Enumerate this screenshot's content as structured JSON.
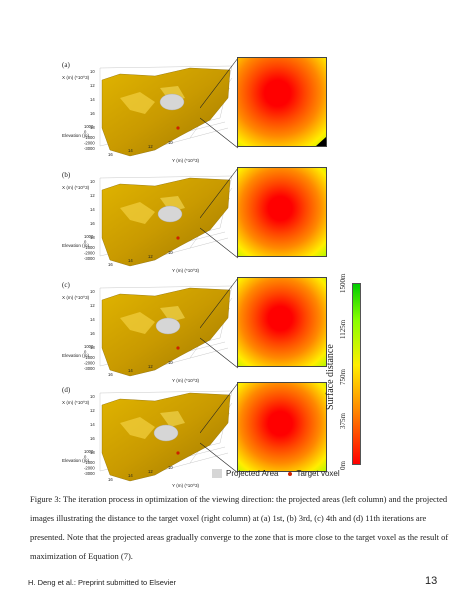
{
  "panels": [
    {
      "label": "(a)",
      "x_axis_label": "X (m) (*10^3)",
      "y_axis_label": "Y (m) (*10^3)",
      "z_axis_label": "Elevation (m)",
      "x_ticks": [
        "10",
        "12",
        "14",
        "16",
        "18"
      ],
      "y_ticks": [
        "16",
        "14",
        "12",
        "10"
      ],
      "z_ticks": [
        "1000",
        "0",
        "-1000",
        "-2000",
        "-3000"
      ]
    },
    {
      "label": "(b)",
      "x_axis_label": "X (m) (*10^3)",
      "y_axis_label": "Y (m) (*10^3)",
      "z_axis_label": "Elevation (m)",
      "x_ticks": [
        "10",
        "12",
        "14",
        "16",
        "18"
      ],
      "y_ticks": [
        "16",
        "14",
        "12",
        "10"
      ],
      "z_ticks": [
        "1000",
        "0",
        "-1000",
        "-2000",
        "-3000"
      ]
    },
    {
      "label": "(c)",
      "x_axis_label": "X (m) (*10^3)",
      "y_axis_label": "Y (m) (*10^3)",
      "z_axis_label": "Elevation (m)",
      "x_ticks": [
        "10",
        "12",
        "14",
        "16",
        "18"
      ],
      "y_ticks": [
        "16",
        "14",
        "12",
        "10"
      ],
      "z_ticks": [
        "1000",
        "0",
        "-1000",
        "-2000",
        "-3000"
      ]
    },
    {
      "label": "(d)",
      "x_axis_label": "X (m) (*10^3)",
      "y_axis_label": "Y (m) (*10^3)",
      "z_axis_label": "Elevation (m)",
      "x_ticks": [
        "10",
        "12",
        "14",
        "16",
        "18"
      ],
      "y_ticks": [
        "16",
        "14",
        "12",
        "10"
      ],
      "z_ticks": [
        "1000",
        "0",
        "-1000",
        "-2000",
        "-3000"
      ]
    }
  ],
  "colorbar": {
    "title": "Surface distance",
    "ticks": [
      "0m",
      "375m",
      "750m",
      "1125m",
      "1500m"
    ],
    "colors": [
      "#ff0000",
      "#ff8800",
      "#ffee00",
      "#88ff00",
      "#00cc00"
    ]
  },
  "legend": {
    "projected_area": "Projected Area",
    "target_voxel": "Target voxel"
  },
  "caption": "Figure 3: The iteration process in optimization of the viewing direction: the projected areas (left column) and the projected images illustrating the distance to the target voxel (right column) at (a) 1st, (b) 3rd, (c) 4th and (d) 11th iterations are presented. Note that the projected areas gradually converge to the zone that is more close to the target voxel as the result of maximization of Equation (7).",
  "footer": {
    "left": "H. Deng et al.: Preprint submitted to Elsevier",
    "page": "13"
  }
}
